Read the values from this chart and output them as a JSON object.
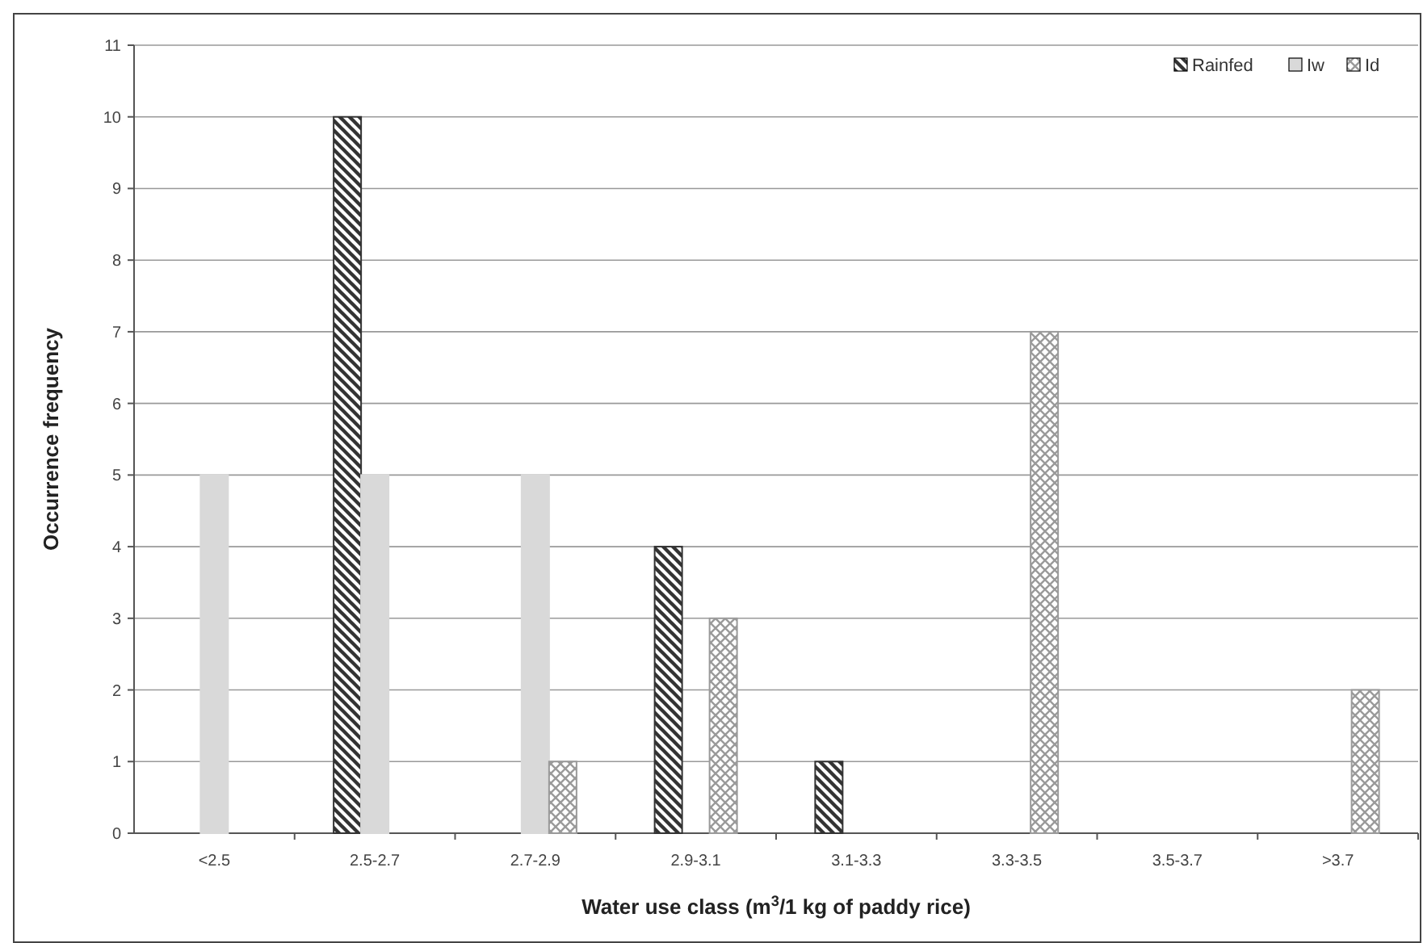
{
  "chart_data": {
    "type": "bar",
    "xlabel": "Water use class (m$^{3}$/1 kg of paddy rice)",
    "ylabel": "Occurrence frequency",
    "categories": [
      "<2.5",
      "2.5-2.7",
      "2.7-2.9",
      "2.9-3.1",
      "3.1-3.3",
      "3.3-3.5",
      "3.5-3.7",
      ">3.7"
    ],
    "series": [
      {
        "name": "Rainfed",
        "color": "#333333",
        "values": [
          0,
          10,
          0,
          4,
          1,
          0,
          0,
          0
        ]
      },
      {
        "name": "Iw",
        "color": "#d9d9d9",
        "values": [
          5,
          5,
          5,
          0,
          0,
          0,
          0,
          0
        ]
      },
      {
        "name": "Id",
        "color": "#9a9a9a",
        "values": [
          0,
          0,
          1,
          3,
          0,
          7,
          0,
          2
        ]
      }
    ],
    "ylim": [
      0,
      11
    ],
    "yticks": [
      0,
      1,
      2,
      3,
      4,
      5,
      6,
      7,
      8,
      9,
      10,
      11
    ],
    "grid": "y",
    "legend": "top right"
  }
}
